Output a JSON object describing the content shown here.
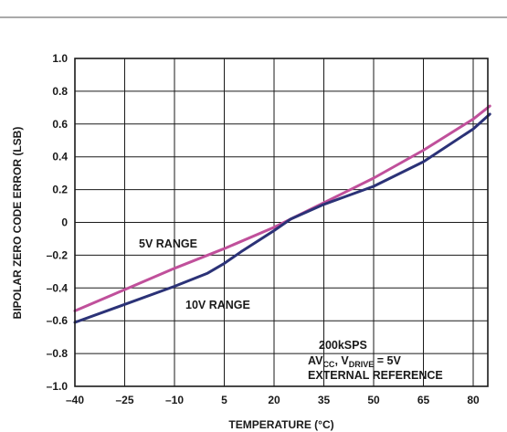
{
  "chart_data": {
    "type": "line",
    "xlabel": "TEMPERATURE (°C)",
    "ylabel": "BIPOLAR ZERO CODE ERROR (LSB)",
    "xlim": [
      -40,
      85
    ],
    "ylim": [
      -1.0,
      1.0
    ],
    "x_ticks": [
      "–40",
      "–25",
      "–10",
      "5",
      "20",
      "35",
      "50",
      "65",
      "80"
    ],
    "y_ticks": [
      "1.0",
      "0.8",
      "0.6",
      "0.4",
      "0.2",
      "0",
      "–0.2",
      "–0.4",
      "–0.6",
      "–0.8",
      "–1.0"
    ],
    "grid": true,
    "series": [
      {
        "name": "5V RANGE",
        "color": "#c0509b",
        "x": [
          -40,
          -25,
          -10,
          5,
          20,
          35,
          50,
          65,
          80,
          85
        ],
        "y": [
          -0.54,
          -0.41,
          -0.28,
          -0.16,
          -0.03,
          0.12,
          0.27,
          0.44,
          0.63,
          0.71
        ]
      },
      {
        "name": "10V RANGE",
        "color": "#2b3277",
        "x": [
          -40,
          -25,
          -10,
          0,
          5,
          10,
          20,
          25,
          35,
          50,
          65,
          80,
          85
        ],
        "y": [
          -0.61,
          -0.5,
          -0.39,
          -0.31,
          -0.25,
          -0.18,
          -0.05,
          0.02,
          0.11,
          0.22,
          0.37,
          0.57,
          0.66
        ]
      }
    ],
    "annotations": {
      "line1": "200kSPS",
      "line2_prefix": "AV",
      "line2_sub1": "CC",
      "line2_mid": ", V",
      "line2_sub2": "DRIVE",
      "line2_suffix": " = 5V",
      "line3": "EXTERNAL REFERENCE"
    }
  }
}
